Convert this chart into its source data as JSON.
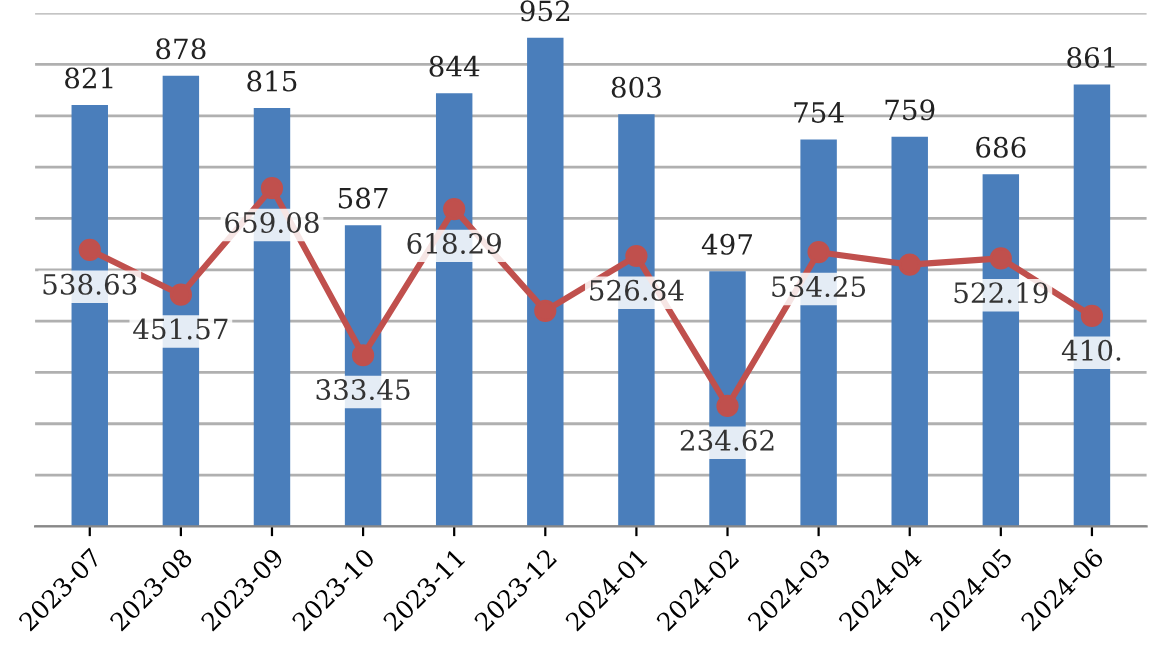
{
  "chart_data": {
    "type": "bar",
    "categories": [
      "2023-07",
      "2023-08",
      "2023-09",
      "2023-10",
      "2023-11",
      "2023-12",
      "2024-01",
      "2024-02",
      "2024-03",
      "2024-04",
      "2024-05",
      "2024-06"
    ],
    "series": [
      {
        "color": "#4a7ebb",
        "values": [
          821,
          878,
          815,
          587,
          844,
          952,
          803,
          497,
          754,
          759,
          686,
          861
        ]
      },
      {
        "type": "line",
        "color": "#c0504d",
        "marker": "circle",
        "values": [
          538.63,
          451.57,
          659.08,
          333.45,
          618.29,
          420,
          526.84,
          234.62,
          534.25,
          510,
          522.19,
          410
        ],
        "value_labels": [
          "538.63",
          "451.57",
          "659.08",
          "333.45",
          "618.29",
          null,
          "526.84",
          "234.62",
          "534.25",
          null,
          "522.19",
          "410."
        ]
      }
    ],
    "data_labels": true,
    "yticks": [
      {
        "value": 0,
        "label": null
      },
      {
        "value": 100,
        "label": null
      },
      {
        "value": 200,
        "label": null
      },
      {
        "value": 300,
        "label": null
      },
      {
        "value": 400,
        "label": null
      },
      {
        "value": 500,
        "label": null
      },
      {
        "value": 600,
        "label": null
      },
      {
        "value": 700,
        "label": null
      },
      {
        "value": 800,
        "label": null
      },
      {
        "value": 900,
        "label": null
      },
      {
        "value": 1000,
        "label": null
      }
    ],
    "grid": "y",
    "tick_labels": "x"
  }
}
